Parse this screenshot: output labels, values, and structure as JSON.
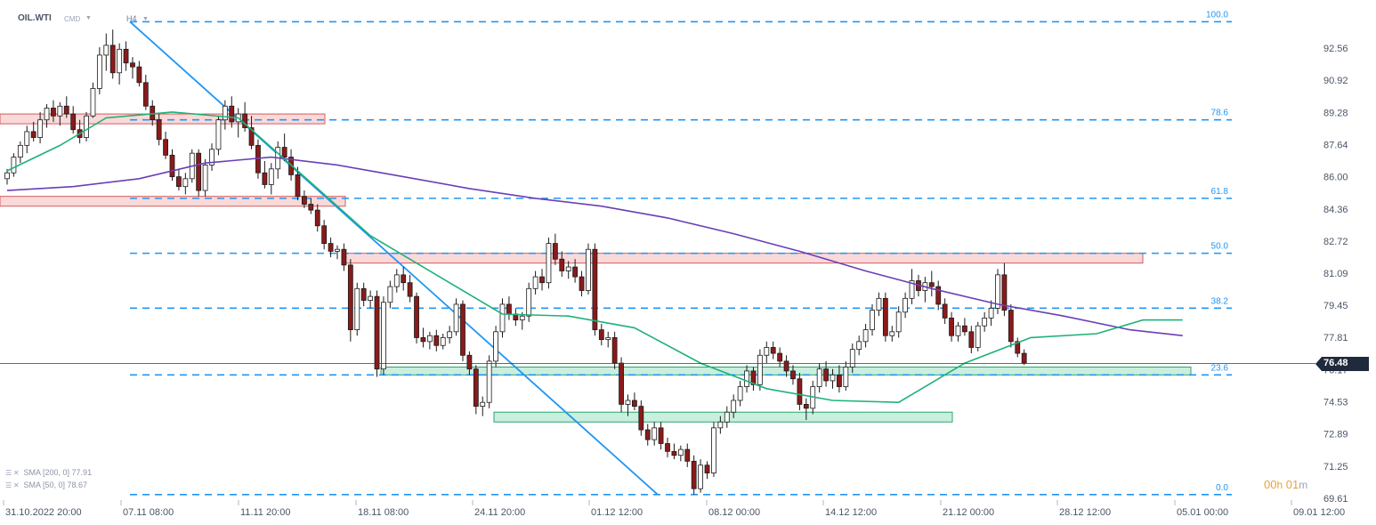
{
  "header": {
    "symbol": "OIL.WTI",
    "instrument_type": "CMD",
    "timeframe": "H4"
  },
  "indicators": [
    {
      "label": "SMA [200, 0] 77.91",
      "color": "#6a3fb5"
    },
    {
      "label": "SMA [50, 0] 78.67",
      "color": "#1db27a"
    }
  ],
  "timer": {
    "hours": "00",
    "h_unit": "h",
    "minutes": "01",
    "m_unit": "m"
  },
  "current_price": "76.48",
  "colors": {
    "up_candle": "#ffffff",
    "down_candle": "#8b1a1a",
    "fib_line": "#2196f3",
    "trendline": "#2196f3",
    "resistance_zone": "#f7c9c9",
    "support_zone": "#b7ead3",
    "price_tag": "#1f2a3c"
  },
  "chart_data": {
    "type": "candlestick",
    "instrument": "OIL.WTI",
    "timeframe": "H4",
    "y_tick_labels": [
      "92.56",
      "90.92",
      "89.28",
      "87.64",
      "86.00",
      "84.36",
      "82.72",
      "81.09",
      "79.45",
      "77.81",
      "76.17",
      "74.53",
      "72.89",
      "71.25",
      "69.61"
    ],
    "ylim": [
      69.61,
      93.8
    ],
    "x_tick_labels": [
      "31.10.2022  20:00",
      "07.11  08:00",
      "11.11  20:00",
      "18.11  08:00",
      "24.11  20:00",
      "01.12  12:00",
      "08.12  00:00",
      "14.12  12:00",
      "21.12  00:00",
      "28.12  12:00",
      "05.01  00:00",
      "09.01  12:00"
    ],
    "fibonacci_levels": [
      {
        "label": "100.0",
        "price": 93.9
      },
      {
        "label": "78.6",
        "price": 88.9
      },
      {
        "label": "61.8",
        "price": 84.9
      },
      {
        "label": "50.0",
        "price": 82.1
      },
      {
        "label": "38.2",
        "price": 79.3
      },
      {
        "label": "23.6",
        "price": 75.9
      },
      {
        "label": "0.0",
        "price": 69.8
      }
    ],
    "resistance_zones": [
      {
        "x_from": "31.10 20:00",
        "x_to": "14.11",
        "low": 88.7,
        "high": 89.2
      },
      {
        "x_from": "31.10 20:00",
        "x_to": "16.11",
        "low": 84.5,
        "high": 85.0
      },
      {
        "x_from": "16.11",
        "x_to": "03.01",
        "low": 81.6,
        "high": 82.1
      }
    ],
    "support_zones": [
      {
        "x_from": "21.11",
        "x_to": "05.01",
        "low": 75.9,
        "high": 76.3
      },
      {
        "x_from": "26.11",
        "x_to": "23.12",
        "low": 73.5,
        "high": 74.0
      }
    ],
    "trendline": {
      "from": {
        "x": "07.11 08:00",
        "price": 93.9
      },
      "to": {
        "x": "05.12",
        "price": 69.8
      }
    },
    "sma_200": {
      "name": "SMA [200, 0] 77.91",
      "last": 77.91,
      "points": [
        [
          0,
          85.3
        ],
        [
          10,
          85.5
        ],
        [
          20,
          85.9
        ],
        [
          30,
          86.7
        ],
        [
          40,
          87.0
        ],
        [
          50,
          86.6
        ],
        [
          60,
          86.0
        ],
        [
          70,
          85.4
        ],
        [
          80,
          84.9
        ],
        [
          90,
          84.5
        ],
        [
          100,
          83.9
        ],
        [
          110,
          83.1
        ],
        [
          120,
          82.2
        ],
        [
          130,
          81.2
        ],
        [
          140,
          80.3
        ],
        [
          150,
          79.5
        ],
        [
          160,
          78.9
        ],
        [
          170,
          78.2
        ],
        [
          178,
          77.9
        ]
      ]
    },
    "sma_50": {
      "name": "SMA [50, 0] 78.67",
      "last": 78.67,
      "points": [
        [
          0,
          86.3
        ],
        [
          8,
          87.6
        ],
        [
          15,
          89.0
        ],
        [
          25,
          89.3
        ],
        [
          35,
          89.0
        ],
        [
          45,
          86.0
        ],
        [
          55,
          83.0
        ],
        [
          65,
          81.0
        ],
        [
          75,
          79.0
        ],
        [
          85,
          78.9
        ],
        [
          95,
          78.3
        ],
        [
          105,
          76.5
        ],
        [
          115,
          75.2
        ],
        [
          125,
          74.6
        ],
        [
          135,
          74.5
        ],
        [
          145,
          76.5
        ],
        [
          155,
          77.8
        ],
        [
          165,
          78.0
        ],
        [
          172,
          78.7
        ],
        [
          178,
          78.7
        ]
      ]
    },
    "candles": [
      [
        85.9,
        86.4,
        85.6,
        86.2
      ],
      [
        86.2,
        87.2,
        86.0,
        87.0
      ],
      [
        87.0,
        87.8,
        86.7,
        87.6
      ],
      [
        87.6,
        88.6,
        87.2,
        88.3
      ],
      [
        88.3,
        88.8,
        87.8,
        88.0
      ],
      [
        88.0,
        89.3,
        87.7,
        88.9
      ],
      [
        88.9,
        89.7,
        88.5,
        89.5
      ],
      [
        89.5,
        89.9,
        88.8,
        89.1
      ],
      [
        89.1,
        89.8,
        88.6,
        89.6
      ],
      [
        89.6,
        90.1,
        89.0,
        89.2
      ],
      [
        89.2,
        89.6,
        88.2,
        88.4
      ],
      [
        88.4,
        88.9,
        87.7,
        88.0
      ],
      [
        88.0,
        89.3,
        87.8,
        89.1
      ],
      [
        89.1,
        90.8,
        89.0,
        90.5
      ],
      [
        90.5,
        92.6,
        90.2,
        92.2
      ],
      [
        92.2,
        93.3,
        91.4,
        92.7
      ],
      [
        92.7,
        93.5,
        91.0,
        91.3
      ],
      [
        91.3,
        92.8,
        90.7,
        92.5
      ],
      [
        92.5,
        92.9,
        91.4,
        91.8
      ],
      [
        91.8,
        92.1,
        91.0,
        91.6
      ],
      [
        91.6,
        91.9,
        90.6,
        90.8
      ],
      [
        90.8,
        91.2,
        89.4,
        89.6
      ],
      [
        89.6,
        89.9,
        88.6,
        88.9
      ],
      [
        88.9,
        89.2,
        87.6,
        87.9
      ],
      [
        87.9,
        88.3,
        86.9,
        87.1
      ],
      [
        87.1,
        87.4,
        85.8,
        86.0
      ],
      [
        86.0,
        86.4,
        85.3,
        85.5
      ],
      [
        85.5,
        86.2,
        85.1,
        85.9
      ],
      [
        85.9,
        87.4,
        85.7,
        87.2
      ],
      [
        87.2,
        87.4,
        85.0,
        85.3
      ],
      [
        85.3,
        86.9,
        85.0,
        86.6
      ],
      [
        86.6,
        87.7,
        86.3,
        87.4
      ],
      [
        87.4,
        89.1,
        87.1,
        88.9
      ],
      [
        88.9,
        89.9,
        88.4,
        89.6
      ],
      [
        89.6,
        90.1,
        88.5,
        88.8
      ],
      [
        88.8,
        89.5,
        88.0,
        89.2
      ],
      [
        89.2,
        89.8,
        88.3,
        88.5
      ],
      [
        88.5,
        89.1,
        87.4,
        87.6
      ],
      [
        87.6,
        87.9,
        85.9,
        86.2
      ],
      [
        86.2,
        86.8,
        85.4,
        85.6
      ],
      [
        85.6,
        86.7,
        85.1,
        86.4
      ],
      [
        86.4,
        87.8,
        85.9,
        87.5
      ],
      [
        87.5,
        88.2,
        86.8,
        87.0
      ],
      [
        87.0,
        87.4,
        85.8,
        86.1
      ],
      [
        86.1,
        86.5,
        84.8,
        85.0
      ],
      [
        85.0,
        85.3,
        84.4,
        84.6
      ],
      [
        84.6,
        84.9,
        84.1,
        84.3
      ],
      [
        84.3,
        84.6,
        83.2,
        83.5
      ],
      [
        83.5,
        83.8,
        82.3,
        82.6
      ],
      [
        82.6,
        82.9,
        81.9,
        82.2
      ],
      [
        82.2,
        82.5,
        81.8,
        82.3
      ],
      [
        82.3,
        82.6,
        81.2,
        81.5
      ],
      [
        81.5,
        81.8,
        77.6,
        78.2
      ],
      [
        78.2,
        80.6,
        77.9,
        80.3
      ],
      [
        80.3,
        80.6,
        79.4,
        79.7
      ],
      [
        79.7,
        80.2,
        79.3,
        79.9
      ],
      [
        79.9,
        80.2,
        75.8,
        76.2
      ],
      [
        76.2,
        79.9,
        75.9,
        79.6
      ],
      [
        79.6,
        80.7,
        79.3,
        80.4
      ],
      [
        80.4,
        81.3,
        80.1,
        81.0
      ],
      [
        81.0,
        81.4,
        80.2,
        80.6
      ],
      [
        80.6,
        81.0,
        79.6,
        79.9
      ],
      [
        79.9,
        80.1,
        77.5,
        77.8
      ],
      [
        77.8,
        78.3,
        77.3,
        77.6
      ],
      [
        77.6,
        78.1,
        77.2,
        77.9
      ],
      [
        77.9,
        78.2,
        77.1,
        77.4
      ],
      [
        77.4,
        78.0,
        77.2,
        77.8
      ],
      [
        77.8,
        78.4,
        77.5,
        78.1
      ],
      [
        78.1,
        79.8,
        77.9,
        79.5
      ],
      [
        79.5,
        79.7,
        76.6,
        76.9
      ],
      [
        76.9,
        77.1,
        75.9,
        76.2
      ],
      [
        76.2,
        76.4,
        73.9,
        74.3
      ],
      [
        74.3,
        74.8,
        73.8,
        74.5
      ],
      [
        74.5,
        76.9,
        74.2,
        76.6
      ],
      [
        76.6,
        78.4,
        76.3,
        78.1
      ],
      [
        78.1,
        79.8,
        77.8,
        79.5
      ],
      [
        79.5,
        79.9,
        78.7,
        79.0
      ],
      [
        79.0,
        79.3,
        78.4,
        78.7
      ],
      [
        78.7,
        79.1,
        78.2,
        78.9
      ],
      [
        78.9,
        80.6,
        78.6,
        80.3
      ],
      [
        80.3,
        81.2,
        80.0,
        80.9
      ],
      [
        80.9,
        81.3,
        80.2,
        80.6
      ],
      [
        80.6,
        82.9,
        80.3,
        82.6
      ],
      [
        82.6,
        83.1,
        81.5,
        81.8
      ],
      [
        81.8,
        82.2,
        80.9,
        81.2
      ],
      [
        81.2,
        81.7,
        80.8,
        81.4
      ],
      [
        81.4,
        81.8,
        80.6,
        80.9
      ],
      [
        80.9,
        81.2,
        79.9,
        80.2
      ],
      [
        80.2,
        82.6,
        80.0,
        82.3
      ],
      [
        82.3,
        82.6,
        77.9,
        78.2
      ],
      [
        78.2,
        78.5,
        77.4,
        77.7
      ],
      [
        77.7,
        78.1,
        77.3,
        77.8
      ],
      [
        77.8,
        78.1,
        76.2,
        76.5
      ],
      [
        76.5,
        76.8,
        74.0,
        74.4
      ],
      [
        74.4,
        74.9,
        73.8,
        74.6
      ],
      [
        74.6,
        75.0,
        74.1,
        74.3
      ],
      [
        74.3,
        74.6,
        72.8,
        73.1
      ],
      [
        73.1,
        73.4,
        72.3,
        72.6
      ],
      [
        72.6,
        73.5,
        72.3,
        73.2
      ],
      [
        73.2,
        73.5,
        72.1,
        72.4
      ],
      [
        72.4,
        72.7,
        71.7,
        72.0
      ],
      [
        72.0,
        72.4,
        71.6,
        71.8
      ],
      [
        71.8,
        72.3,
        71.5,
        72.1
      ],
      [
        72.1,
        72.4,
        71.2,
        71.5
      ],
      [
        71.5,
        71.8,
        69.8,
        70.1
      ],
      [
        70.1,
        71.6,
        69.9,
        71.3
      ],
      [
        71.3,
        71.5,
        70.6,
        70.9
      ],
      [
        70.9,
        73.5,
        70.7,
        73.2
      ],
      [
        73.2,
        73.8,
        72.9,
        73.5
      ],
      [
        73.5,
        74.3,
        73.2,
        74.0
      ],
      [
        74.0,
        74.9,
        73.7,
        74.6
      ],
      [
        74.6,
        75.6,
        74.3,
        75.3
      ],
      [
        75.3,
        76.4,
        75.0,
        76.1
      ],
      [
        76.1,
        76.3,
        75.1,
        75.4
      ],
      [
        75.4,
        77.2,
        75.1,
        76.9
      ],
      [
        76.9,
        77.6,
        76.5,
        77.3
      ],
      [
        77.3,
        77.6,
        76.7,
        77.0
      ],
      [
        77.0,
        77.3,
        76.3,
        76.6
      ],
      [
        76.6,
        76.9,
        75.8,
        76.1
      ],
      [
        76.1,
        76.4,
        75.4,
        75.7
      ],
      [
        75.7,
        76.0,
        74.1,
        74.4
      ],
      [
        74.4,
        74.7,
        73.6,
        74.2
      ],
      [
        74.2,
        75.6,
        73.9,
        75.3
      ],
      [
        75.3,
        76.5,
        75.0,
        76.2
      ],
      [
        76.2,
        76.6,
        75.3,
        75.6
      ],
      [
        75.6,
        76.2,
        75.2,
        75.9
      ],
      [
        75.9,
        76.4,
        75.0,
        75.3
      ],
      [
        75.3,
        76.6,
        75.1,
        76.3
      ],
      [
        76.3,
        77.5,
        76.0,
        77.2
      ],
      [
        77.2,
        77.9,
        76.9,
        77.6
      ],
      [
        77.6,
        78.5,
        77.3,
        78.2
      ],
      [
        78.2,
        79.5,
        77.9,
        79.2
      ],
      [
        79.2,
        80.1,
        78.9,
        79.8
      ],
      [
        79.8,
        80.1,
        77.6,
        77.9
      ],
      [
        77.9,
        78.4,
        77.6,
        78.1
      ],
      [
        78.1,
        79.4,
        77.8,
        79.1
      ],
      [
        79.1,
        80.1,
        78.8,
        79.8
      ],
      [
        79.8,
        81.3,
        79.5,
        80.7
      ],
      [
        80.7,
        81.0,
        79.9,
        80.2
      ],
      [
        80.2,
        80.9,
        79.6,
        80.6
      ],
      [
        80.6,
        81.2,
        79.9,
        80.4
      ],
      [
        80.4,
        80.7,
        79.2,
        79.5
      ],
      [
        79.5,
        79.8,
        78.5,
        78.8
      ],
      [
        78.8,
        79.1,
        77.6,
        77.9
      ],
      [
        77.9,
        78.6,
        77.6,
        78.4
      ],
      [
        78.4,
        78.8,
        77.9,
        78.1
      ],
      [
        78.1,
        78.4,
        77.0,
        77.3
      ],
      [
        77.3,
        78.6,
        77.1,
        78.4
      ],
      [
        78.4,
        79.1,
        78.1,
        78.8
      ],
      [
        78.8,
        79.7,
        78.4,
        79.3
      ],
      [
        79.3,
        81.3,
        79.0,
        81.0
      ],
      [
        81.0,
        81.6,
        78.9,
        79.2
      ],
      [
        79.2,
        79.5,
        77.3,
        77.6
      ],
      [
        77.6,
        77.8,
        76.8,
        77.0
      ],
      [
        77.0,
        77.2,
        76.4,
        76.5
      ]
    ]
  }
}
